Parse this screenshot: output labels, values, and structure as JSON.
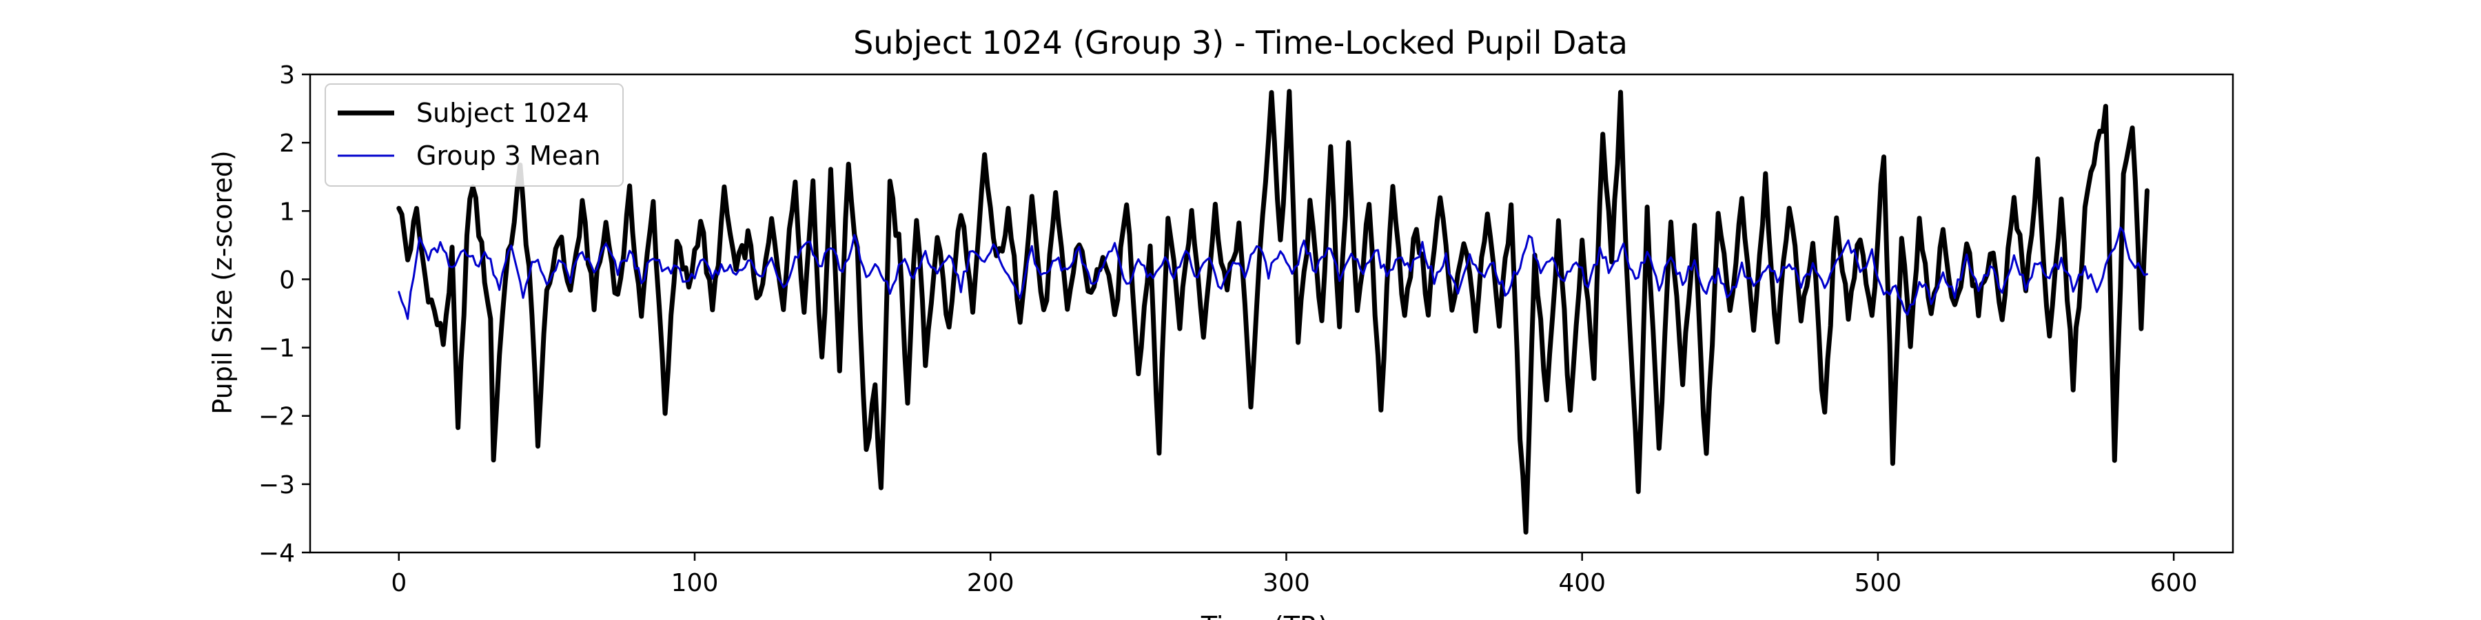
{
  "chart_data": {
    "type": "line",
    "title": "Subject 1024 (Group 3) - Time-Locked Pupil Data",
    "xlabel": "Time (TR)",
    "ylabel": "Pupil Size (z-scored)",
    "xlim": [
      -30,
      620
    ],
    "ylim": [
      -4,
      3
    ],
    "xticks": [
      0,
      100,
      200,
      300,
      400,
      500,
      600
    ],
    "yticks": [
      -4,
      -3,
      -2,
      -1,
      0,
      1,
      2,
      3
    ],
    "grid": false,
    "legend": "top-left",
    "n_points": 592,
    "series": [
      {
        "name": "Subject 1024",
        "color": "#000000",
        "line_width": "thick",
        "anchors": [
          [
            0,
            1.15
          ],
          [
            3,
            0.3
          ],
          [
            6,
            0.95
          ],
          [
            9,
            0.0
          ],
          [
            12,
            -0.5
          ],
          [
            15,
            -0.9
          ],
          [
            18,
            0.3
          ],
          [
            20,
            -2.3
          ],
          [
            23,
            0.6
          ],
          [
            25,
            1.45
          ],
          [
            28,
            0.4
          ],
          [
            31,
            -0.6
          ],
          [
            32,
            -2.6
          ],
          [
            35,
            -0.4
          ],
          [
            38,
            0.6
          ],
          [
            41,
            1.55
          ],
          [
            44,
            0.2
          ],
          [
            47,
            -2.3
          ],
          [
            50,
            -0.3
          ],
          [
            54,
            0.7
          ],
          [
            58,
            -0.2
          ],
          [
            62,
            1.0
          ],
          [
            66,
            -0.3
          ],
          [
            70,
            0.8
          ],
          [
            74,
            -0.3
          ],
          [
            78,
            1.2
          ],
          [
            82,
            -0.5
          ],
          [
            86,
            1.1
          ],
          [
            90,
            -1.85
          ],
          [
            94,
            0.5
          ],
          [
            98,
            -0.1
          ],
          [
            102,
            0.9
          ],
          [
            106,
            -0.5
          ],
          [
            110,
            1.2
          ],
          [
            114,
            0.1
          ],
          [
            118,
            0.6
          ],
          [
            122,
            -0.4
          ],
          [
            126,
            0.8
          ],
          [
            130,
            -0.3
          ],
          [
            134,
            1.5
          ],
          [
            137,
            -0.5
          ],
          [
            140,
            1.5
          ],
          [
            143,
            -1.3
          ],
          [
            146,
            1.6
          ],
          [
            149,
            -1.2
          ],
          [
            152,
            1.7
          ],
          [
            155,
            0.3
          ],
          [
            158,
            -2.5
          ],
          [
            161,
            -1.5
          ],
          [
            163,
            -3.15
          ],
          [
            166,
            1.3
          ],
          [
            169,
            0.5
          ],
          [
            172,
            -1.7
          ],
          [
            175,
            1.0
          ],
          [
            178,
            -1.2
          ],
          [
            182,
            0.7
          ],
          [
            186,
            -0.8
          ],
          [
            190,
            1.1
          ],
          [
            194,
            -0.6
          ],
          [
            198,
            1.8
          ],
          [
            202,
            0.2
          ],
          [
            206,
            0.9
          ],
          [
            210,
            -0.5
          ],
          [
            214,
            1.2
          ],
          [
            218,
            -0.6
          ],
          [
            222,
            1.1
          ],
          [
            226,
            -0.4
          ],
          [
            230,
            0.6
          ],
          [
            234,
            -0.3
          ],
          [
            238,
            0.4
          ],
          [
            242,
            -0.6
          ],
          [
            246,
            1.2
          ],
          [
            250,
            -1.3
          ],
          [
            254,
            0.5
          ],
          [
            257,
            -2.5
          ],
          [
            260,
            1.0
          ],
          [
            264,
            -0.6
          ],
          [
            268,
            1.0
          ],
          [
            272,
            -0.7
          ],
          [
            276,
            1.0
          ],
          [
            280,
            -0.2
          ],
          [
            284,
            0.8
          ],
          [
            288,
            -1.8
          ],
          [
            292,
            0.9
          ],
          [
            295,
            2.75
          ],
          [
            298,
            0.5
          ],
          [
            301,
            2.6
          ],
          [
            304,
            -0.9
          ],
          [
            308,
            1.0
          ],
          [
            312,
            -0.5
          ],
          [
            315,
            1.8
          ],
          [
            318,
            -0.8
          ],
          [
            321,
            2.0
          ],
          [
            324,
            -0.4
          ],
          [
            328,
            1.0
          ],
          [
            332,
            -1.9
          ],
          [
            336,
            1.5
          ],
          [
            340,
            -0.6
          ],
          [
            344,
            0.8
          ],
          [
            348,
            -0.4
          ],
          [
            352,
            1.2
          ],
          [
            356,
            -0.4
          ],
          [
            360,
            0.6
          ],
          [
            364,
            -0.6
          ],
          [
            368,
            0.9
          ],
          [
            372,
            -0.7
          ],
          [
            376,
            1.0
          ],
          [
            379,
            -2.2
          ],
          [
            381,
            -3.65
          ],
          [
            384,
            0.3
          ],
          [
            388,
            -1.7
          ],
          [
            392,
            0.8
          ],
          [
            396,
            -2.0
          ],
          [
            400,
            0.5
          ],
          [
            404,
            -1.3
          ],
          [
            407,
            2.1
          ],
          [
            410,
            0.3
          ],
          [
            413,
            2.6
          ],
          [
            416,
            -0.8
          ],
          [
            419,
            -3.1
          ],
          [
            422,
            1.0
          ],
          [
            426,
            -2.6
          ],
          [
            430,
            0.8
          ],
          [
            434,
            -1.5
          ],
          [
            438,
            0.7
          ],
          [
            442,
            -2.7
          ],
          [
            446,
            1.0
          ],
          [
            450,
            -0.5
          ],
          [
            454,
            1.2
          ],
          [
            458,
            -0.7
          ],
          [
            462,
            1.5
          ],
          [
            466,
            -1.0
          ],
          [
            470,
            1.2
          ],
          [
            474,
            -0.5
          ],
          [
            478,
            0.5
          ],
          [
            482,
            -2.1
          ],
          [
            486,
            1.0
          ],
          [
            490,
            -0.5
          ],
          [
            494,
            0.7
          ],
          [
            498,
            -0.6
          ],
          [
            502,
            1.9
          ],
          [
            505,
            -2.6
          ],
          [
            508,
            0.6
          ],
          [
            511,
            -1.0
          ],
          [
            514,
            0.8
          ],
          [
            518,
            -0.6
          ],
          [
            522,
            0.6
          ],
          [
            526,
            -0.5
          ],
          [
            530,
            0.6
          ],
          [
            534,
            -0.5
          ],
          [
            538,
            0.5
          ],
          [
            542,
            -0.5
          ],
          [
            546,
            1.2
          ],
          [
            550,
            -0.2
          ],
          [
            554,
            1.7
          ],
          [
            558,
            -1.0
          ],
          [
            562,
            1.1
          ],
          [
            566,
            -1.5
          ],
          [
            570,
            1.0
          ],
          [
            574,
            1.9
          ],
          [
            577,
            2.5
          ],
          [
            580,
            -2.65
          ],
          [
            583,
            1.4
          ],
          [
            586,
            2.2
          ],
          [
            589,
            -0.6
          ],
          [
            591,
            1.4
          ],
          [
            592,
            -0.2
          ]
        ]
      },
      {
        "name": "Group 3 Mean",
        "color": "#0000cc",
        "line_width": "thin",
        "anchors": [
          [
            0,
            -0.1
          ],
          [
            3,
            -0.55
          ],
          [
            7,
            0.6
          ],
          [
            10,
            0.3
          ],
          [
            14,
            0.5
          ],
          [
            18,
            0.1
          ],
          [
            22,
            0.5
          ],
          [
            26,
            0.2
          ],
          [
            30,
            0.4
          ],
          [
            34,
            -0.1
          ],
          [
            38,
            0.5
          ],
          [
            42,
            -0.2
          ],
          [
            46,
            0.3
          ],
          [
            50,
            -0.1
          ],
          [
            54,
            0.3
          ],
          [
            58,
            0.0
          ],
          [
            62,
            0.4
          ],
          [
            66,
            0.1
          ],
          [
            70,
            0.5
          ],
          [
            74,
            0.1
          ],
          [
            78,
            0.4
          ],
          [
            82,
            0.0
          ],
          [
            86,
            0.3
          ],
          [
            90,
            0.1
          ],
          [
            94,
            0.2
          ],
          [
            98,
            -0.1
          ],
          [
            102,
            0.3
          ],
          [
            106,
            0.0
          ],
          [
            110,
            0.2
          ],
          [
            114,
            0.1
          ],
          [
            118,
            0.3
          ],
          [
            122,
            0.0
          ],
          [
            126,
            0.3
          ],
          [
            130,
            -0.1
          ],
          [
            134,
            0.3
          ],
          [
            138,
            0.6
          ],
          [
            142,
            0.2
          ],
          [
            146,
            0.5
          ],
          [
            150,
            0.1
          ],
          [
            154,
            0.6
          ],
          [
            158,
            0.0
          ],
          [
            162,
            0.2
          ],
          [
            166,
            -0.2
          ],
          [
            170,
            0.3
          ],
          [
            174,
            0.0
          ],
          [
            178,
            0.4
          ],
          [
            182,
            0.0
          ],
          [
            186,
            0.4
          ],
          [
            190,
            -0.1
          ],
          [
            194,
            0.5
          ],
          [
            198,
            0.2
          ],
          [
            202,
            0.5
          ],
          [
            206,
            0.0
          ],
          [
            210,
            -0.2
          ],
          [
            214,
            0.4
          ],
          [
            218,
            0.0
          ],
          [
            222,
            0.3
          ],
          [
            226,
            0.1
          ],
          [
            230,
            0.4
          ],
          [
            234,
            -0.1
          ],
          [
            238,
            0.2
          ],
          [
            242,
            0.5
          ],
          [
            246,
            -0.1
          ],
          [
            250,
            0.3
          ],
          [
            254,
            0.0
          ],
          [
            258,
            0.3
          ],
          [
            262,
            0.1
          ],
          [
            266,
            0.4
          ],
          [
            270,
            0.0
          ],
          [
            274,
            0.3
          ],
          [
            278,
            -0.2
          ],
          [
            282,
            0.3
          ],
          [
            286,
            0.1
          ],
          [
            290,
            0.5
          ],
          [
            294,
            0.1
          ],
          [
            298,
            0.4
          ],
          [
            302,
            0.0
          ],
          [
            306,
            0.5
          ],
          [
            310,
            0.1
          ],
          [
            314,
            0.5
          ],
          [
            318,
            0.0
          ],
          [
            322,
            0.4
          ],
          [
            326,
            0.1
          ],
          [
            330,
            0.5
          ],
          [
            334,
            0.0
          ],
          [
            338,
            0.4
          ],
          [
            342,
            0.1
          ],
          [
            346,
            0.5
          ],
          [
            350,
            0.0
          ],
          [
            354,
            0.3
          ],
          [
            358,
            -0.2
          ],
          [
            362,
            0.3
          ],
          [
            366,
            0.0
          ],
          [
            370,
            0.2
          ],
          [
            374,
            -0.2
          ],
          [
            378,
            0.1
          ],
          [
            382,
            0.7
          ],
          [
            386,
            0.1
          ],
          [
            390,
            0.3
          ],
          [
            394,
            0.0
          ],
          [
            398,
            0.3
          ],
          [
            402,
            -0.1
          ],
          [
            406,
            0.4
          ],
          [
            410,
            0.1
          ],
          [
            414,
            0.5
          ],
          [
            418,
            0.0
          ],
          [
            422,
            0.4
          ],
          [
            426,
            -0.1
          ],
          [
            430,
            0.3
          ],
          [
            434,
            0.0
          ],
          [
            438,
            0.2
          ],
          [
            442,
            -0.2
          ],
          [
            446,
            0.1
          ],
          [
            450,
            -0.3
          ],
          [
            454,
            0.2
          ],
          [
            458,
            -0.1
          ],
          [
            462,
            0.2
          ],
          [
            466,
            0.0
          ],
          [
            470,
            0.3
          ],
          [
            474,
            -0.1
          ],
          [
            478,
            0.2
          ],
          [
            482,
            -0.1
          ],
          [
            486,
            0.2
          ],
          [
            490,
            0.6
          ],
          [
            494,
            0.1
          ],
          [
            498,
            0.4
          ],
          [
            502,
            -0.3
          ],
          [
            506,
            -0.1
          ],
          [
            510,
            -0.6
          ],
          [
            514,
            0.0
          ],
          [
            518,
            -0.3
          ],
          [
            522,
            0.1
          ],
          [
            526,
            -0.2
          ],
          [
            530,
            0.3
          ],
          [
            534,
            -0.1
          ],
          [
            538,
            0.2
          ],
          [
            542,
            -0.2
          ],
          [
            546,
            0.3
          ],
          [
            550,
            -0.1
          ],
          [
            554,
            0.3
          ],
          [
            558,
            0.0
          ],
          [
            562,
            0.3
          ],
          [
            566,
            -0.1
          ],
          [
            570,
            0.2
          ],
          [
            574,
            -0.2
          ],
          [
            578,
            0.3
          ],
          [
            582,
            0.75
          ],
          [
            586,
            0.2
          ],
          [
            590,
            0.1
          ],
          [
            592,
            0.0
          ]
        ]
      }
    ]
  }
}
